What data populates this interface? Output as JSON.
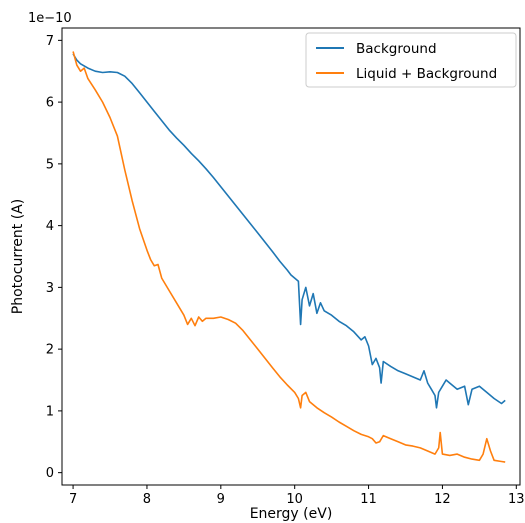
{
  "chart_data": {
    "type": "line",
    "title": "",
    "xlabel": "Energy (eV)",
    "ylabel": "Photocurrent (A)",
    "y_offset_text": "1e−10",
    "xlim": [
      6.85,
      13.05
    ],
    "ylim": [
      -0.2,
      7.2
    ],
    "xticks": [
      7,
      8,
      9,
      10,
      11,
      12,
      13
    ],
    "yticks": [
      0,
      1,
      2,
      3,
      4,
      5,
      6,
      7
    ],
    "grid": false,
    "legend_position": "upper-right",
    "series": [
      {
        "name": "Background",
        "color": "#1f77b4",
        "points": [
          [
            7.0,
            6.78
          ],
          [
            7.05,
            6.68
          ],
          [
            7.1,
            6.62
          ],
          [
            7.2,
            6.55
          ],
          [
            7.3,
            6.5
          ],
          [
            7.4,
            6.48
          ],
          [
            7.5,
            6.49
          ],
          [
            7.6,
            6.48
          ],
          [
            7.7,
            6.42
          ],
          [
            7.8,
            6.3
          ],
          [
            7.9,
            6.15
          ],
          [
            8.0,
            6.0
          ],
          [
            8.1,
            5.85
          ],
          [
            8.2,
            5.7
          ],
          [
            8.3,
            5.55
          ],
          [
            8.4,
            5.42
          ],
          [
            8.5,
            5.3
          ],
          [
            8.6,
            5.17
          ],
          [
            8.7,
            5.05
          ],
          [
            8.8,
            4.92
          ],
          [
            8.9,
            4.78
          ],
          [
            9.0,
            4.63
          ],
          [
            9.1,
            4.48
          ],
          [
            9.2,
            4.33
          ],
          [
            9.3,
            4.18
          ],
          [
            9.4,
            4.03
          ],
          [
            9.5,
            3.88
          ],
          [
            9.6,
            3.73
          ],
          [
            9.7,
            3.58
          ],
          [
            9.8,
            3.42
          ],
          [
            9.9,
            3.28
          ],
          [
            9.95,
            3.2
          ],
          [
            10.0,
            3.15
          ],
          [
            10.05,
            3.1
          ],
          [
            10.08,
            2.4
          ],
          [
            10.1,
            2.8
          ],
          [
            10.15,
            3.0
          ],
          [
            10.2,
            2.7
          ],
          [
            10.25,
            2.9
          ],
          [
            10.3,
            2.58
          ],
          [
            10.35,
            2.75
          ],
          [
            10.4,
            2.62
          ],
          [
            10.5,
            2.55
          ],
          [
            10.6,
            2.45
          ],
          [
            10.7,
            2.38
          ],
          [
            10.8,
            2.28
          ],
          [
            10.9,
            2.15
          ],
          [
            10.95,
            2.2
          ],
          [
            11.0,
            2.05
          ],
          [
            11.05,
            1.75
          ],
          [
            11.1,
            1.85
          ],
          [
            11.15,
            1.7
          ],
          [
            11.17,
            1.45
          ],
          [
            11.2,
            1.8
          ],
          [
            11.3,
            1.72
          ],
          [
            11.4,
            1.65
          ],
          [
            11.5,
            1.6
          ],
          [
            11.6,
            1.55
          ],
          [
            11.7,
            1.5
          ],
          [
            11.75,
            1.65
          ],
          [
            11.8,
            1.45
          ],
          [
            11.85,
            1.35
          ],
          [
            11.9,
            1.25
          ],
          [
            11.92,
            1.05
          ],
          [
            11.95,
            1.3
          ],
          [
            12.0,
            1.4
          ],
          [
            12.05,
            1.5
          ],
          [
            12.1,
            1.45
          ],
          [
            12.2,
            1.35
          ],
          [
            12.3,
            1.4
          ],
          [
            12.35,
            1.1
          ],
          [
            12.4,
            1.35
          ],
          [
            12.5,
            1.4
          ],
          [
            12.6,
            1.3
          ],
          [
            12.7,
            1.2
          ],
          [
            12.8,
            1.12
          ],
          [
            12.85,
            1.17
          ]
        ]
      },
      {
        "name": "Liquid + Background",
        "color": "#ff7f0e",
        "points": [
          [
            7.0,
            6.82
          ],
          [
            7.05,
            6.6
          ],
          [
            7.1,
            6.5
          ],
          [
            7.15,
            6.55
          ],
          [
            7.2,
            6.38
          ],
          [
            7.3,
            6.2
          ],
          [
            7.4,
            6.0
          ],
          [
            7.5,
            5.75
          ],
          [
            7.6,
            5.45
          ],
          [
            7.7,
            4.9
          ],
          [
            7.8,
            4.4
          ],
          [
            7.9,
            3.95
          ],
          [
            8.0,
            3.6
          ],
          [
            8.05,
            3.45
          ],
          [
            8.1,
            3.35
          ],
          [
            8.15,
            3.37
          ],
          [
            8.2,
            3.15
          ],
          [
            8.3,
            2.95
          ],
          [
            8.4,
            2.75
          ],
          [
            8.5,
            2.55
          ],
          [
            8.55,
            2.4
          ],
          [
            8.6,
            2.5
          ],
          [
            8.65,
            2.38
          ],
          [
            8.7,
            2.52
          ],
          [
            8.75,
            2.45
          ],
          [
            8.8,
            2.5
          ],
          [
            8.9,
            2.5
          ],
          [
            9.0,
            2.52
          ],
          [
            9.1,
            2.48
          ],
          [
            9.2,
            2.42
          ],
          [
            9.3,
            2.3
          ],
          [
            9.4,
            2.15
          ],
          [
            9.5,
            2.0
          ],
          [
            9.6,
            1.85
          ],
          [
            9.7,
            1.7
          ],
          [
            9.8,
            1.55
          ],
          [
            9.9,
            1.42
          ],
          [
            10.0,
            1.3
          ],
          [
            10.05,
            1.2
          ],
          [
            10.08,
            1.05
          ],
          [
            10.1,
            1.25
          ],
          [
            10.15,
            1.3
          ],
          [
            10.2,
            1.15
          ],
          [
            10.3,
            1.05
          ],
          [
            10.4,
            0.97
          ],
          [
            10.5,
            0.9
          ],
          [
            10.6,
            0.82
          ],
          [
            10.7,
            0.75
          ],
          [
            10.8,
            0.68
          ],
          [
            10.9,
            0.62
          ],
          [
            11.0,
            0.58
          ],
          [
            11.05,
            0.55
          ],
          [
            11.1,
            0.48
          ],
          [
            11.15,
            0.5
          ],
          [
            11.2,
            0.6
          ],
          [
            11.3,
            0.55
          ],
          [
            11.4,
            0.5
          ],
          [
            11.5,
            0.45
          ],
          [
            11.6,
            0.43
          ],
          [
            11.7,
            0.4
          ],
          [
            11.8,
            0.35
          ],
          [
            11.9,
            0.3
          ],
          [
            11.95,
            0.4
          ],
          [
            11.97,
            0.65
          ],
          [
            12.0,
            0.3
          ],
          [
            12.1,
            0.28
          ],
          [
            12.2,
            0.3
          ],
          [
            12.3,
            0.25
          ],
          [
            12.4,
            0.22
          ],
          [
            12.5,
            0.2
          ],
          [
            12.55,
            0.3
          ],
          [
            12.6,
            0.55
          ],
          [
            12.65,
            0.35
          ],
          [
            12.7,
            0.2
          ],
          [
            12.8,
            0.18
          ],
          [
            12.85,
            0.17
          ]
        ]
      }
    ]
  }
}
